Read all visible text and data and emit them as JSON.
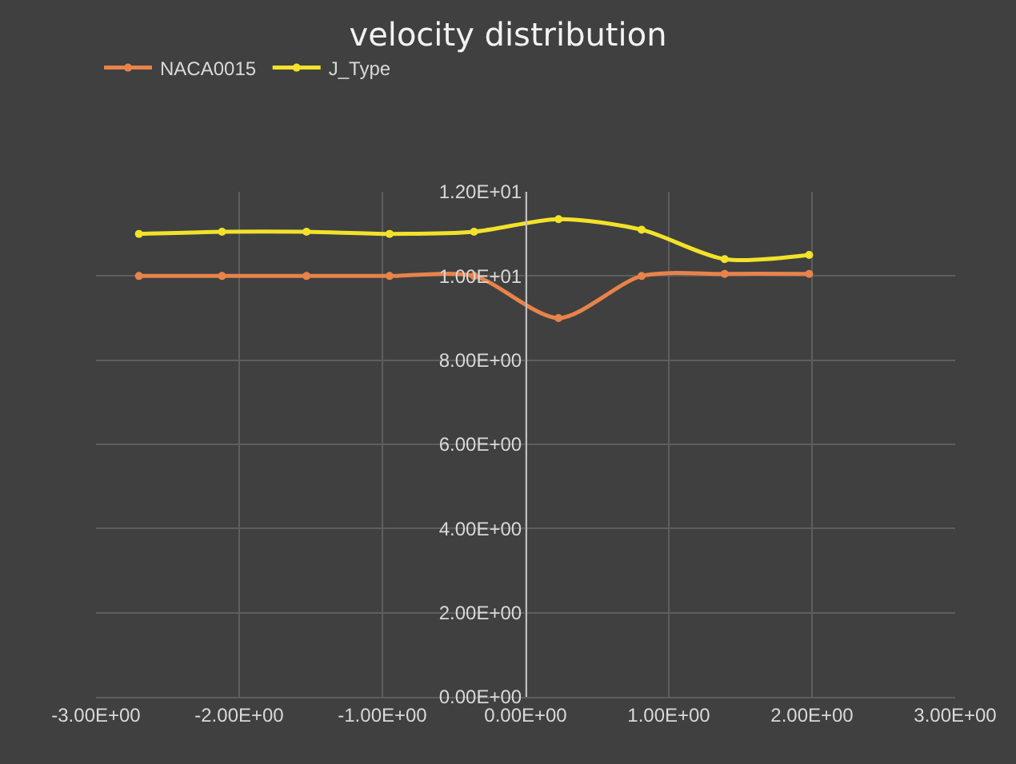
{
  "chart_data": {
    "type": "line",
    "title": "velocity distribution",
    "x": [
      -2.7,
      -2.12,
      -1.53,
      -0.95,
      -0.36,
      0.23,
      0.81,
      1.39,
      1.98
    ],
    "series": [
      {
        "name": "NACA0015",
        "color": "#e8834a",
        "values": [
          10.0,
          10.0,
          10.0,
          10.0,
          10.0,
          9.0,
          10.0,
          10.05,
          10.05
        ]
      },
      {
        "name": "J_Type",
        "color": "#f2e22a",
        "values": [
          11.0,
          11.05,
          11.05,
          11.0,
          11.05,
          11.35,
          11.1,
          10.4,
          10.5
        ]
      }
    ],
    "xlim": [
      -3,
      3
    ],
    "xticks": [
      {
        "value": -3,
        "label": "-3.00E+00"
      },
      {
        "value": -2,
        "label": "-2.00E+00"
      },
      {
        "value": -1,
        "label": "-1.00E+00"
      },
      {
        "value": 0,
        "label": "0.00E+00"
      },
      {
        "value": 1,
        "label": "1.00E+00"
      },
      {
        "value": 2,
        "label": "2.00E+00"
      },
      {
        "value": 3,
        "label": "3.00E+00"
      }
    ],
    "ylim": [
      0,
      12
    ],
    "yticks": [
      {
        "value": 0,
        "label": "0.00E+00"
      },
      {
        "value": 2,
        "label": "2.00E+00"
      },
      {
        "value": 4,
        "label": "4.00E+00"
      },
      {
        "value": 6,
        "label": "6.00E+00"
      },
      {
        "value": 8,
        "label": "8.00E+00"
      },
      {
        "value": 10,
        "label": "1.00E+01"
      },
      {
        "value": 12,
        "label": "1.20E+01"
      }
    ],
    "grid": true,
    "legend": "top left",
    "marker": "circle",
    "line_style": "solid"
  }
}
